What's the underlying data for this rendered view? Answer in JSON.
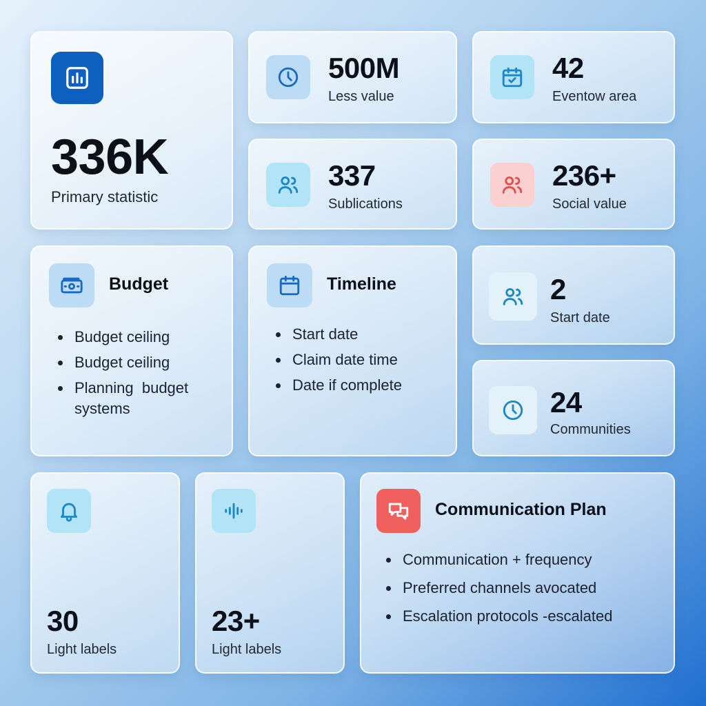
{
  "colors": {
    "primary_icon_bg": "#0d5fc0",
    "alert_icon_bg": "#f0605f",
    "social_icon_bg": "#fbd0d0",
    "background_start": "#e6f1fb",
    "background_end": "#1f6fd0"
  },
  "primary": {
    "icon": "bar-chart-icon",
    "value": "336K",
    "label": "Primary statistic"
  },
  "stats": [
    {
      "icon": "clock-icon",
      "value": "500M",
      "label": "Less value"
    },
    {
      "icon": "calendar-check-icon",
      "value": "42",
      "label": "Eventow area"
    },
    {
      "icon": "users-icon",
      "value": "337",
      "label": "Sublications"
    },
    {
      "icon": "users-icon",
      "value": "236+",
      "label": "Social value"
    },
    {
      "icon": "users-icon",
      "value": "2",
      "label": "Start date"
    },
    {
      "icon": "clock-icon",
      "value": "24",
      "label": "Communities"
    },
    {
      "icon": "bell-icon",
      "value": "30",
      "label": "Light labels"
    },
    {
      "icon": "audio-wave-icon",
      "value": "23+",
      "label": "Light labels"
    }
  ],
  "budget": {
    "icon": "money-icon",
    "title": "Budget",
    "items": [
      "Budget ceiling",
      "Budget ceiling",
      "Planning  budget systems"
    ]
  },
  "timeline": {
    "icon": "calendar-icon",
    "title": "Timeline",
    "items": [
      "Start date",
      "Claim date time",
      "Date if complete"
    ]
  },
  "communication": {
    "icon": "chat-bubbles-icon",
    "title": "Communication Plan",
    "items": [
      "Communication + frequency",
      "Preferred channels avocated",
      "Escalation protocols -escalated"
    ]
  }
}
